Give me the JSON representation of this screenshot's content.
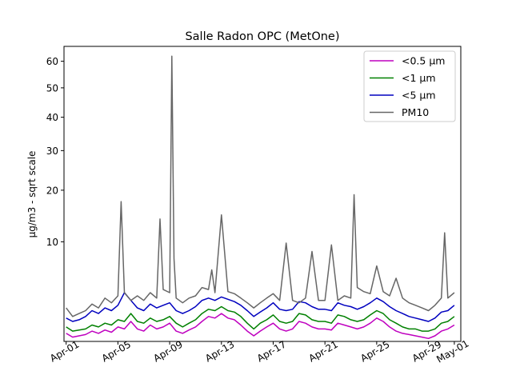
{
  "chart_data": {
    "type": "line",
    "title": "Salle Radon OPC (MetOne)",
    "xlabel": "",
    "ylabel": "µg/m3 - sqrt scale",
    "yscale": "sqrt",
    "xlim": [
      "2024-03-31T20:00",
      "2024-05-01T12:00"
    ],
    "ylim": [
      0.4,
      66
    ],
    "x_ticks": [
      {
        "date": "2024-04-01",
        "label": "Apr-01"
      },
      {
        "date": "2024-04-05",
        "label": "Apr-05"
      },
      {
        "date": "2024-04-09",
        "label": "Apr-09"
      },
      {
        "date": "2024-04-13",
        "label": "Apr-13"
      },
      {
        "date": "2024-04-17",
        "label": "Apr-17"
      },
      {
        "date": "2024-04-21",
        "label": "Apr-21"
      },
      {
        "date": "2024-04-25",
        "label": "Apr-25"
      },
      {
        "date": "2024-04-29",
        "label": "Apr-29"
      },
      {
        "date": "2024-05-01",
        "label": "May-01"
      }
    ],
    "y_ticks": [
      10,
      20,
      30,
      40,
      50,
      60
    ],
    "grid": false,
    "legend_position": "top-right",
    "series": [
      {
        "name": "<0.5 µm",
        "color": "#bf00bf",
        "x": [
          "2024-04-01T00:00",
          "2024-04-01T12:00",
          "2024-04-02T00:00",
          "2024-04-02T12:00",
          "2024-04-03T00:00",
          "2024-04-03T12:00",
          "2024-04-04T00:00",
          "2024-04-04T12:00",
          "2024-04-05T00:00",
          "2024-04-05T12:00",
          "2024-04-06T00:00",
          "2024-04-06T12:00",
          "2024-04-07T00:00",
          "2024-04-07T12:00",
          "2024-04-08T00:00",
          "2024-04-08T12:00",
          "2024-04-09T00:00",
          "2024-04-09T12:00",
          "2024-04-10T00:00",
          "2024-04-10T12:00",
          "2024-04-11T00:00",
          "2024-04-11T12:00",
          "2024-04-12T00:00",
          "2024-04-12T12:00",
          "2024-04-13T00:00",
          "2024-04-13T12:00",
          "2024-04-14T00:00",
          "2024-04-14T12:00",
          "2024-04-15T00:00",
          "2024-04-15T12:00",
          "2024-04-16T00:00",
          "2024-04-16T12:00",
          "2024-04-17T00:00",
          "2024-04-17T12:00",
          "2024-04-18T00:00",
          "2024-04-18T12:00",
          "2024-04-19T00:00",
          "2024-04-19T12:00",
          "2024-04-20T00:00",
          "2024-04-20T12:00",
          "2024-04-21T00:00",
          "2024-04-21T12:00",
          "2024-04-22T00:00",
          "2024-04-22T12:00",
          "2024-04-23T00:00",
          "2024-04-23T12:00",
          "2024-04-24T00:00",
          "2024-04-24T12:00",
          "2024-04-25T00:00",
          "2024-04-25T12:00",
          "2024-04-26T00:00",
          "2024-04-26T12:00",
          "2024-04-27T00:00",
          "2024-04-27T12:00",
          "2024-04-28T00:00",
          "2024-04-28T12:00",
          "2024-04-29T00:00",
          "2024-04-29T12:00",
          "2024-04-30T00:00",
          "2024-04-30T12:00",
          "2024-05-01T00:00"
        ],
        "values": [
          0.7,
          0.55,
          0.6,
          0.65,
          0.8,
          0.7,
          0.85,
          0.75,
          1.0,
          0.9,
          1.3,
          0.9,
          0.8,
          1.1,
          0.9,
          1.0,
          1.2,
          0.8,
          0.7,
          0.85,
          1.0,
          1.3,
          1.6,
          1.5,
          1.8,
          1.5,
          1.4,
          1.1,
          0.8,
          0.6,
          0.8,
          1.0,
          1.2,
          0.9,
          0.8,
          0.9,
          1.3,
          1.2,
          1.0,
          0.9,
          0.9,
          0.85,
          1.2,
          1.1,
          1.0,
          0.9,
          1.0,
          1.2,
          1.5,
          1.3,
          1.0,
          0.8,
          0.7,
          0.65,
          0.6,
          0.55,
          0.5,
          0.6,
          0.8,
          0.9,
          1.1
        ]
      },
      {
        "name": "<1 µm",
        "color": "#008000",
        "x": [
          "2024-04-01T00:00",
          "2024-04-01T12:00",
          "2024-04-02T00:00",
          "2024-04-02T12:00",
          "2024-04-03T00:00",
          "2024-04-03T12:00",
          "2024-04-04T00:00",
          "2024-04-04T12:00",
          "2024-04-05T00:00",
          "2024-04-05T12:00",
          "2024-04-06T00:00",
          "2024-04-06T12:00",
          "2024-04-07T00:00",
          "2024-04-07T12:00",
          "2024-04-08T00:00",
          "2024-04-08T12:00",
          "2024-04-09T00:00",
          "2024-04-09T12:00",
          "2024-04-10T00:00",
          "2024-04-10T12:00",
          "2024-04-11T00:00",
          "2024-04-11T12:00",
          "2024-04-12T00:00",
          "2024-04-12T12:00",
          "2024-04-13T00:00",
          "2024-04-13T12:00",
          "2024-04-14T00:00",
          "2024-04-14T12:00",
          "2024-04-15T00:00",
          "2024-04-15T12:00",
          "2024-04-16T00:00",
          "2024-04-16T12:00",
          "2024-04-17T00:00",
          "2024-04-17T12:00",
          "2024-04-18T00:00",
          "2024-04-18T12:00",
          "2024-04-19T00:00",
          "2024-04-19T12:00",
          "2024-04-20T00:00",
          "2024-04-20T12:00",
          "2024-04-21T00:00",
          "2024-04-21T12:00",
          "2024-04-22T00:00",
          "2024-04-22T12:00",
          "2024-04-23T00:00",
          "2024-04-23T12:00",
          "2024-04-24T00:00",
          "2024-04-24T12:00",
          "2024-04-25T00:00",
          "2024-04-25T12:00",
          "2024-04-26T00:00",
          "2024-04-26T12:00",
          "2024-04-27T00:00",
          "2024-04-27T12:00",
          "2024-04-28T00:00",
          "2024-04-28T12:00",
          "2024-04-29T00:00",
          "2024-04-29T12:00",
          "2024-04-30T00:00",
          "2024-04-30T12:00",
          "2024-05-01T00:00"
        ],
        "values": [
          1.0,
          0.8,
          0.85,
          0.9,
          1.1,
          1.0,
          1.2,
          1.1,
          1.4,
          1.3,
          1.8,
          1.3,
          1.2,
          1.5,
          1.3,
          1.4,
          1.6,
          1.2,
          1.0,
          1.2,
          1.4,
          1.8,
          2.1,
          2.0,
          2.3,
          2.0,
          1.9,
          1.6,
          1.2,
          0.9,
          1.2,
          1.4,
          1.7,
          1.3,
          1.2,
          1.3,
          1.8,
          1.7,
          1.4,
          1.3,
          1.3,
          1.2,
          1.7,
          1.6,
          1.4,
          1.3,
          1.4,
          1.7,
          2.0,
          1.8,
          1.4,
          1.2,
          1.0,
          0.9,
          0.9,
          0.8,
          0.8,
          0.9,
          1.2,
          1.3,
          1.6
        ]
      },
      {
        "name": "<5 µm",
        "color": "#0000bf",
        "x": [
          "2024-04-01T00:00",
          "2024-04-01T12:00",
          "2024-04-02T00:00",
          "2024-04-02T12:00",
          "2024-04-03T00:00",
          "2024-04-03T12:00",
          "2024-04-04T00:00",
          "2024-04-04T12:00",
          "2024-04-05T00:00",
          "2024-04-05T12:00",
          "2024-04-06T00:00",
          "2024-04-06T12:00",
          "2024-04-07T00:00",
          "2024-04-07T12:00",
          "2024-04-08T00:00",
          "2024-04-08T12:00",
          "2024-04-09T00:00",
          "2024-04-09T12:00",
          "2024-04-10T00:00",
          "2024-04-10T12:00",
          "2024-04-11T00:00",
          "2024-04-11T12:00",
          "2024-04-12T00:00",
          "2024-04-12T12:00",
          "2024-04-13T00:00",
          "2024-04-13T12:00",
          "2024-04-14T00:00",
          "2024-04-14T12:00",
          "2024-04-15T00:00",
          "2024-04-15T12:00",
          "2024-04-16T00:00",
          "2024-04-16T12:00",
          "2024-04-17T00:00",
          "2024-04-17T12:00",
          "2024-04-18T00:00",
          "2024-04-18T12:00",
          "2024-04-19T00:00",
          "2024-04-19T12:00",
          "2024-04-20T00:00",
          "2024-04-20T12:00",
          "2024-04-21T00:00",
          "2024-04-21T12:00",
          "2024-04-22T00:00",
          "2024-04-22T12:00",
          "2024-04-23T00:00",
          "2024-04-23T12:00",
          "2024-04-24T00:00",
          "2024-04-24T12:00",
          "2024-04-25T00:00",
          "2024-04-25T12:00",
          "2024-04-26T00:00",
          "2024-04-26T12:00",
          "2024-04-27T00:00",
          "2024-04-27T12:00",
          "2024-04-28T00:00",
          "2024-04-28T12:00",
          "2024-04-29T00:00",
          "2024-04-29T12:00",
          "2024-04-30T00:00",
          "2024-04-30T12:00",
          "2024-05-01T00:00"
        ],
        "values": [
          1.5,
          1.3,
          1.4,
          1.6,
          2.0,
          1.8,
          2.2,
          2.0,
          2.4,
          3.5,
          2.8,
          2.2,
          2.0,
          2.5,
          2.2,
          2.4,
          2.6,
          2.0,
          1.8,
          2.0,
          2.3,
          2.8,
          3.0,
          2.8,
          3.1,
          2.9,
          2.7,
          2.4,
          2.0,
          1.6,
          1.9,
          2.2,
          2.6,
          2.1,
          2.0,
          2.1,
          2.7,
          2.6,
          2.3,
          2.1,
          2.1,
          2.0,
          2.6,
          2.4,
          2.3,
          2.1,
          2.3,
          2.6,
          3.0,
          2.7,
          2.3,
          2.0,
          1.8,
          1.6,
          1.5,
          1.4,
          1.3,
          1.5,
          1.9,
          2.0,
          2.4
        ]
      },
      {
        "name": "PM10",
        "color": "#666666",
        "x": [
          "2024-04-01T00:00",
          "2024-04-01T12:00",
          "2024-04-02T00:00",
          "2024-04-02T12:00",
          "2024-04-03T00:00",
          "2024-04-03T12:00",
          "2024-04-04T00:00",
          "2024-04-04T12:00",
          "2024-04-05T00:00",
          "2024-04-05T06:00",
          "2024-04-05T12:00",
          "2024-04-06T00:00",
          "2024-04-06T12:00",
          "2024-04-07T00:00",
          "2024-04-07T12:00",
          "2024-04-08T00:00",
          "2024-04-08T06:00",
          "2024-04-08T12:00",
          "2024-04-09T00:00",
          "2024-04-09T04:00",
          "2024-04-09T08:00",
          "2024-04-09T12:00",
          "2024-04-10T00:00",
          "2024-04-10T12:00",
          "2024-04-11T00:00",
          "2024-04-11T12:00",
          "2024-04-12T00:00",
          "2024-04-12T06:00",
          "2024-04-12T12:00",
          "2024-04-13T00:00",
          "2024-04-13T12:00",
          "2024-04-14T00:00",
          "2024-04-14T12:00",
          "2024-04-15T00:00",
          "2024-04-15T12:00",
          "2024-04-16T00:00",
          "2024-04-16T12:00",
          "2024-04-17T00:00",
          "2024-04-17T12:00",
          "2024-04-18T00:00",
          "2024-04-18T12:00",
          "2024-04-19T00:00",
          "2024-04-19T12:00",
          "2024-04-20T00:00",
          "2024-04-20T12:00",
          "2024-04-21T00:00",
          "2024-04-21T12:00",
          "2024-04-22T00:00",
          "2024-04-22T12:00",
          "2024-04-23T00:00",
          "2024-04-23T06:00",
          "2024-04-23T12:00",
          "2024-04-24T00:00",
          "2024-04-24T12:00",
          "2024-04-25T00:00",
          "2024-04-25T12:00",
          "2024-04-26T00:00",
          "2024-04-26T12:00",
          "2024-04-27T00:00",
          "2024-04-27T12:00",
          "2024-04-28T00:00",
          "2024-04-28T12:00",
          "2024-04-29T00:00",
          "2024-04-29T12:00",
          "2024-04-30T00:00",
          "2024-04-30T06:00",
          "2024-04-30T12:00",
          "2024-05-01T00:00"
        ],
        "values": [
          2.2,
          1.6,
          1.8,
          2.0,
          2.5,
          2.2,
          3.0,
          2.6,
          3.2,
          17.5,
          3.5,
          2.8,
          3.2,
          2.8,
          3.5,
          3.0,
          14.0,
          3.8,
          3.5,
          62.0,
          7.5,
          3.0,
          2.6,
          3.0,
          3.2,
          4.0,
          3.8,
          6.0,
          3.5,
          14.8,
          3.6,
          3.4,
          3.0,
          2.6,
          2.2,
          2.6,
          3.0,
          3.4,
          2.8,
          9.8,
          2.8,
          2.6,
          3.0,
          8.5,
          2.8,
          2.8,
          9.5,
          2.8,
          3.2,
          3.0,
          19.0,
          4.0,
          3.6,
          3.4,
          6.5,
          3.6,
          3.2,
          5.0,
          3.0,
          2.6,
          2.4,
          2.2,
          2.0,
          2.4,
          3.0,
          11.5,
          3.0,
          3.5
        ]
      }
    ]
  }
}
